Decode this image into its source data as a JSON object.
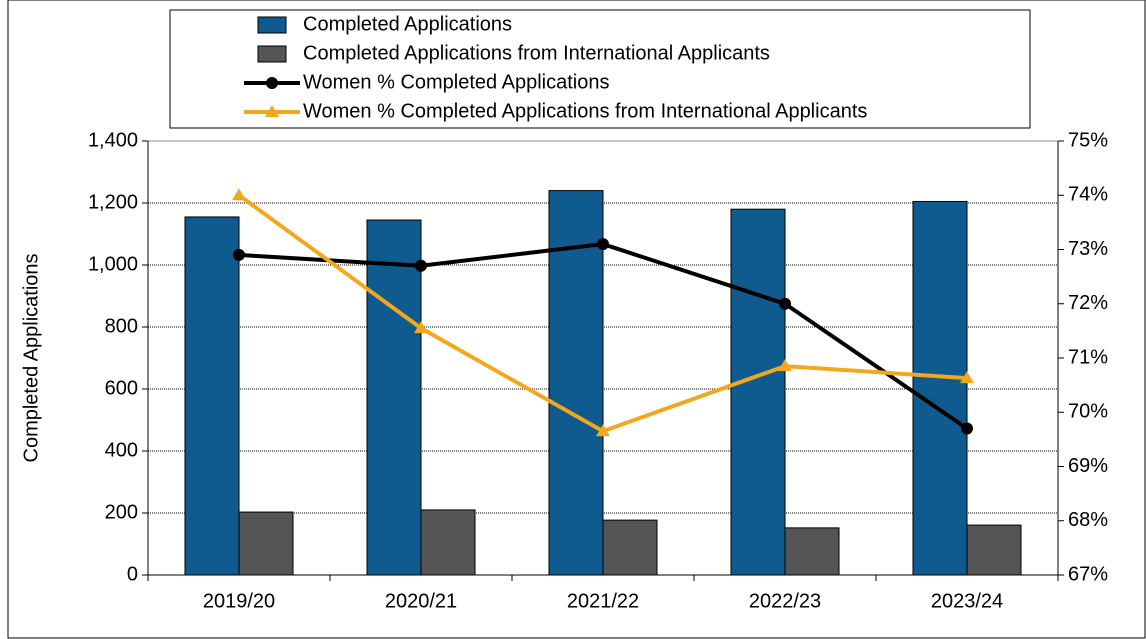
{
  "chart_data": {
    "type": "bar-line",
    "y_label": "Completed Applications",
    "categories": [
      "2019/20",
      "2020/21",
      "2021/22",
      "2022/23",
      "2023/24"
    ],
    "series": [
      {
        "name": "Completed Applications",
        "type": "bar",
        "color": "#0f5a8e",
        "values": [
          1155,
          1145,
          1240,
          1180,
          1205
        ]
      },
      {
        "name": "Completed Applications from International Applicants",
        "type": "bar",
        "color": "#555555",
        "values": [
          203,
          210,
          177,
          152,
          161
        ]
      },
      {
        "name": "Women % Completed Applications",
        "type": "line",
        "marker": "circle",
        "axis": "y2",
        "color": "#000000",
        "values": [
          72.9,
          72.7,
          73.1,
          72.0,
          69.7
        ]
      },
      {
        "name": "Women % Completed Applications from International Applicants",
        "type": "line",
        "marker": "triangle",
        "axis": "y2",
        "color": "#f2a81d",
        "values": [
          74.0,
          71.55,
          69.65,
          70.85,
          70.63
        ]
      }
    ],
    "ylim": [
      0,
      1400
    ],
    "yticks": [
      0,
      200,
      400,
      600,
      800,
      {
        "value": 1000,
        "label": "1,000"
      },
      {
        "value": 1200,
        "label": "1,200"
      },
      {
        "value": 1400,
        "label": "1,400"
      }
    ],
    "y2lim": [
      67,
      75
    ],
    "y2ticks": [
      {
        "value": 67,
        "label": "67%"
      },
      {
        "value": 68,
        "label": "68%"
      },
      {
        "value": 69,
        "label": "69%"
      },
      {
        "value": 70,
        "label": "70%"
      },
      {
        "value": 71,
        "label": "71%"
      },
      {
        "value": 72,
        "label": "72%"
      },
      {
        "value": 73,
        "label": "73%"
      },
      {
        "value": 74,
        "label": "74%"
      },
      {
        "value": 75,
        "label": "75%"
      }
    ],
    "grid": true,
    "legend": "top"
  }
}
